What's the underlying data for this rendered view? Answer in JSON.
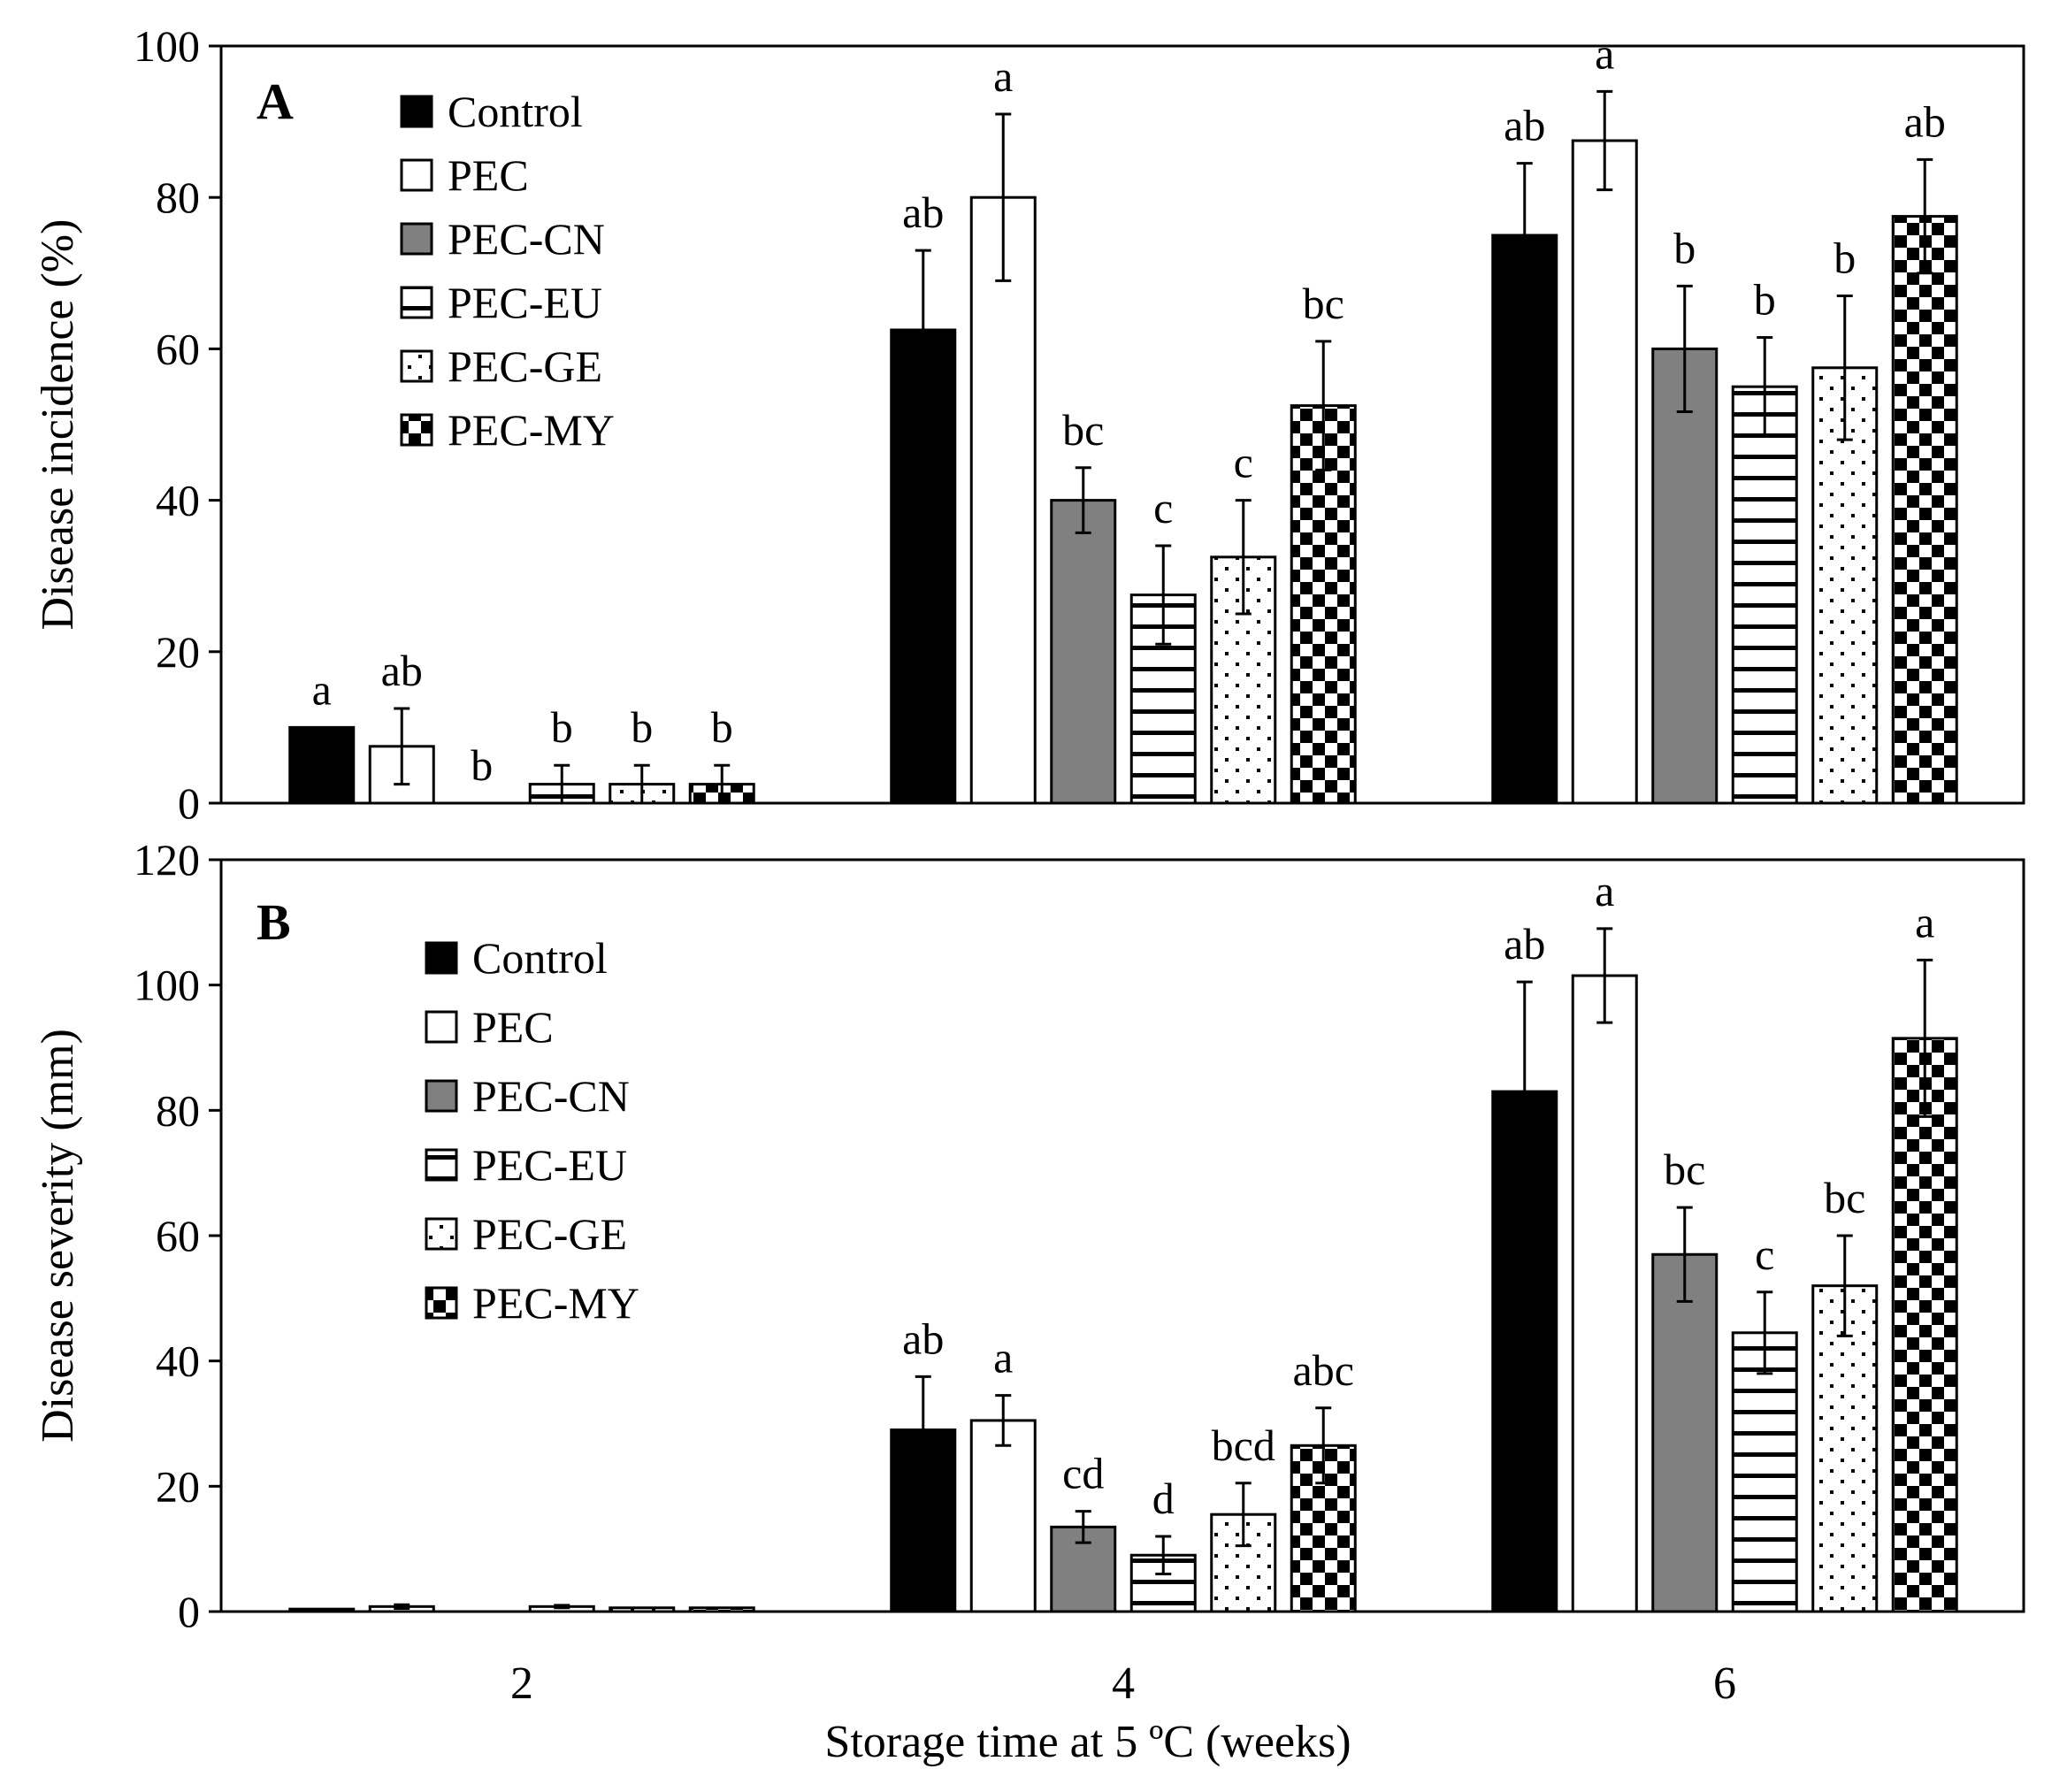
{
  "figure": {
    "xlabel": "Storage time at 5 ºC (weeks)",
    "x_ticks": [
      "2",
      "4",
      "6"
    ]
  },
  "chart_data": [
    {
      "type": "bar",
      "panel_label": "A",
      "title": "",
      "ylabel": "Disease incidence (%)",
      "xlabel": "Storage time at 5 ºC (weeks)",
      "ylim": [
        0,
        100
      ],
      "y_ticks": [
        0,
        20,
        40,
        60,
        80,
        100
      ],
      "categories": [
        "2",
        "4",
        "6"
      ],
      "legend_position": "top-left",
      "series": [
        {
          "name": "Control",
          "pattern": "solid-black",
          "values": [
            10,
            62.5,
            75
          ],
          "errors": [
            0,
            10.5,
            9.5
          ],
          "letters": [
            "a",
            "ab",
            "ab"
          ]
        },
        {
          "name": "PEC",
          "pattern": "white",
          "values": [
            7.5,
            80,
            87.5
          ],
          "errors": [
            5,
            11,
            6.5
          ],
          "letters": [
            "ab",
            "a",
            "a"
          ]
        },
        {
          "name": "PEC-CN",
          "pattern": "solid-gray",
          "values": [
            0,
            40,
            60
          ],
          "errors": [
            0,
            4.3,
            8.3
          ],
          "letters": [
            "b",
            "bc",
            "b"
          ]
        },
        {
          "name": "PEC-EU",
          "pattern": "horizontal-stripes",
          "values": [
            2.5,
            27.5,
            55
          ],
          "errors": [
            2.5,
            6.5,
            6.5
          ],
          "letters": [
            "b",
            "c",
            "b"
          ]
        },
        {
          "name": "PEC-GE",
          "pattern": "dots",
          "values": [
            2.5,
            32.5,
            57.5
          ],
          "errors": [
            2.5,
            7.5,
            9.5
          ],
          "letters": [
            "b",
            "c",
            "b"
          ]
        },
        {
          "name": "PEC-MY",
          "pattern": "checkerboard",
          "values": [
            2.5,
            52.5,
            77.5
          ],
          "errors": [
            2.5,
            8.5,
            7.5
          ],
          "letters": [
            "b",
            "bc",
            "ab"
          ]
        }
      ]
    },
    {
      "type": "bar",
      "panel_label": "B",
      "title": "",
      "ylabel": "Disease severity (mm)",
      "xlabel": "Storage time at 5 ºC (weeks)",
      "ylim": [
        0,
        120
      ],
      "y_ticks": [
        0,
        20,
        40,
        60,
        80,
        100,
        120
      ],
      "categories": [
        "2",
        "4",
        "6"
      ],
      "legend_position": "top-left",
      "series": [
        {
          "name": "Control",
          "pattern": "solid-black",
          "values": [
            0.4,
            29,
            83
          ],
          "errors": [
            0,
            8.5,
            17.5
          ],
          "letters": [
            "",
            "ab",
            "ab"
          ]
        },
        {
          "name": "PEC",
          "pattern": "white",
          "values": [
            0.8,
            30.5,
            101.5
          ],
          "errors": [
            0.3,
            4,
            7.5
          ],
          "letters": [
            "",
            "a",
            "a"
          ]
        },
        {
          "name": "PEC-CN",
          "pattern": "solid-gray",
          "values": [
            0,
            13.5,
            57
          ],
          "errors": [
            0,
            2.5,
            7.5
          ],
          "letters": [
            "",
            "cd",
            "bc"
          ]
        },
        {
          "name": "PEC-EU",
          "pattern": "horizontal-stripes",
          "values": [
            0.8,
            9,
            44.5
          ],
          "errors": [
            0.2,
            3,
            6.5
          ],
          "letters": [
            "",
            "d",
            "c"
          ]
        },
        {
          "name": "PEC-GE",
          "pattern": "dots",
          "values": [
            0.6,
            15.5,
            52
          ],
          "errors": [
            0,
            5,
            8
          ],
          "letters": [
            "",
            "bcd",
            "bc"
          ]
        },
        {
          "name": "PEC-MY",
          "pattern": "checkerboard",
          "values": [
            0.6,
            26.5,
            91.5
          ],
          "errors": [
            0,
            6,
            12.5
          ],
          "letters": [
            "",
            "abc",
            "a"
          ]
        }
      ]
    }
  ]
}
